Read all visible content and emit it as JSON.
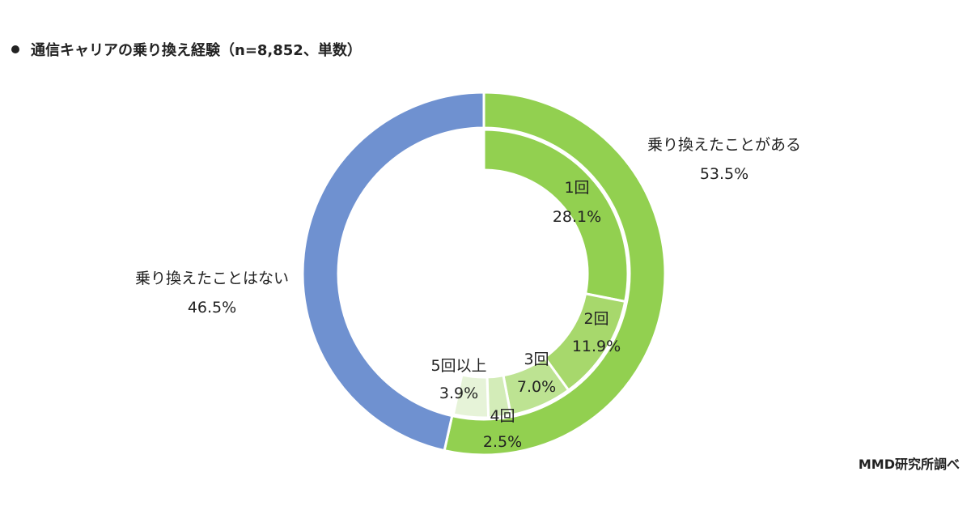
{
  "title": "通信キャリアの乗り換え経験（n=8,852、単数）",
  "source": "MMD研究所調べ",
  "colors": {
    "outer_yes": "#92d050",
    "outer_no": "#6f91d0",
    "inner_1": "#92d050",
    "inner_2": "#a7d86c",
    "inner_3": "#bde392",
    "inner_4": "#d3ecb8",
    "inner_5plus": "#e6f3d8"
  },
  "chart_data": [
    {
      "type": "pie",
      "ring": "outer",
      "slices": [
        {
          "label": "乗り換えたことがある",
          "value": 53.5,
          "value_label": "53.5%",
          "color_key": "outer_yes"
        },
        {
          "label": "乗り換えたことはない",
          "value": 46.5,
          "value_label": "46.5%",
          "color_key": "outer_no"
        }
      ]
    },
    {
      "type": "pie",
      "ring": "inner",
      "slices": [
        {
          "label": "1回",
          "value": 28.1,
          "value_label": "28.1%",
          "color_key": "inner_1"
        },
        {
          "label": "2回",
          "value": 11.9,
          "value_label": "11.9%",
          "color_key": "inner_2"
        },
        {
          "label": "3回",
          "value": 7.0,
          "value_label": "7.0%",
          "color_key": "inner_3"
        },
        {
          "label": "4回",
          "value": 2.5,
          "value_label": "2.5%",
          "color_key": "inner_4"
        },
        {
          "label": "5回以上",
          "value": 3.9,
          "value_label": "3.9%",
          "color_key": "inner_5plus"
        }
      ]
    }
  ]
}
